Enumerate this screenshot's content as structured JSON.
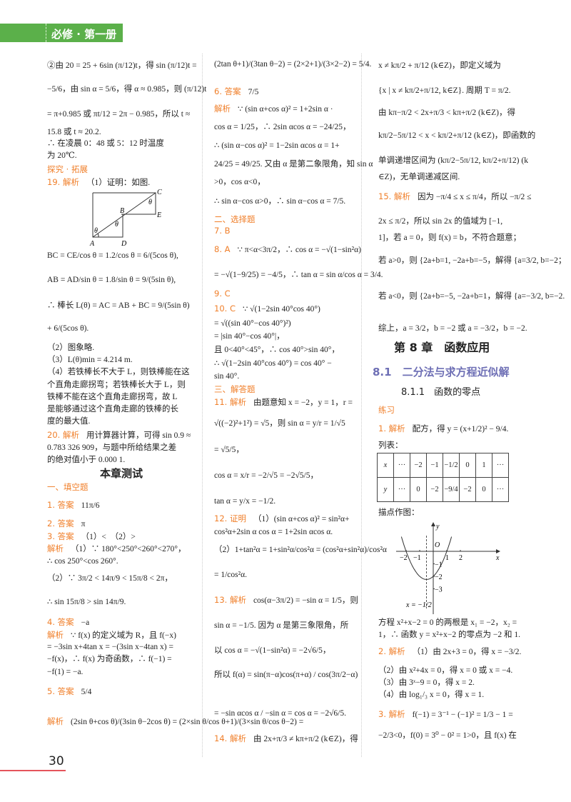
{
  "header": {
    "book": "必修 · 第一册"
  },
  "page_number": "30",
  "col1": [
    {
      "text": "②由 20 = 25 + 6sin (π/12)t，得 sin (π/12)t ="
    },
    {
      "text": "−5/6，由 sin α = 5/6，得 α ≈ 0.985，则 (π/12)t"
    },
    {
      "text": "= π+0.985 或 πt/12 = 2π − 0.985，所以 t ≈"
    },
    {
      "text": "15.8 或 t ≈ 20.2."
    },
    {
      "text": "∴ 在凌晨 0：48 或 5：12 时温度"
    },
    {
      "text": "为 20℃."
    },
    {
      "orange": "探究 · 拓展"
    },
    {
      "label": "19. 解析",
      "text": "（1）证明：如图."
    },
    {
      "text": "BC = CE/cos θ = 1.2/cos θ = 6/(5cos θ),"
    },
    {
      "text": "AB = AD/sin θ = 1.8/sin θ = 9/(5sin θ),"
    },
    {
      "text": "∴ 棒长 L(θ) = AC = AB + BC = 9/(5sin θ)"
    },
    {
      "text": "+ 6/(5cos θ)."
    },
    {
      "text": "（2）图象略."
    },
    {
      "text": "（3）L(θ)min = 4.214 m."
    },
    {
      "text": "（4）若铁棒长不大于 L，则铁棒能在这"
    },
    {
      "text": "个直角走廊拐弯；若铁棒长大于 L，则"
    },
    {
      "text": "铁棒不能在这个直角走廊拐弯，故 L"
    },
    {
      "text": "是能够通过这个直角走廊的铁棒的长"
    },
    {
      "text": "度的最大值."
    },
    {
      "label": "20. 解析",
      "text": "用计算器计算，可得 sin 0.9 ≈"
    },
    {
      "text": "0.783 326 909，与题中所给结果之差"
    },
    {
      "text": "的绝对值小于 0.000 1."
    },
    {
      "title": "本章测试"
    },
    {
      "orange": "一、填空题"
    },
    {
      "label": "1. 答案",
      "text": "11π/6"
    },
    {
      "label": "2. 答案",
      "text": "π"
    },
    {
      "label": "3. 答案",
      "text": "（1）<　（2）>"
    },
    {
      "label": "解析",
      "text": "（1）∵ 180°<250°<260°<270°，"
    },
    {
      "text": "∴ cos 250°<cos 260°."
    },
    {
      "text": "（2）∵ 3π/2 < 14π/9 < 15π/8 < 2π，"
    },
    {
      "text": "∴ sin 15π/8 > sin 14π/9."
    },
    {
      "label": "4. 答案",
      "text": "−a"
    },
    {
      "label": "解析",
      "text": "∵ f(x) 的定义域为 R，且 f(−x)"
    },
    {
      "text": "= −3sin x+4tan x = −(3sin x−4tan x) ="
    },
    {
      "text": "−f(x)，∴ f(x) 为奇函数，∴ f(−1) ="
    },
    {
      "text": "−f(1) = −a."
    },
    {
      "label": "5. 答案",
      "text": "5/4"
    },
    {
      "label": "解析",
      "text": "(2sin θ+cos θ)/(3sin θ−2cos θ) = (2×sin θ/cos θ+1)/(3×sin θ/cos θ−2) ="
    }
  ],
  "col2": [
    {
      "text": "(2tan θ+1)/(3tan θ−2) = (2×2+1)/(3×2−2) = 5/4."
    },
    {
      "label": "6. 答案",
      "text": "7/5"
    },
    {
      "label": "解析",
      "text": "∵ (sin α+cos α)² = 1+2sin α ·"
    },
    {
      "text": "cos α = 1/25，∴ 2sin αcos α = −24/25，"
    },
    {
      "text": "∴ (sin α−cos α)² = 1−2sin αcos α = 1+"
    },
    {
      "text": "24/25 = 49/25. 又由 α 是第二象限角，知 sin α"
    },
    {
      "text": ">0，cos α<0，"
    },
    {
      "text": "∴ sin α−cos α>0，∴ sin α−cos α = 7/5."
    },
    {
      "orange": "二、选择题"
    },
    {
      "label": "7. B",
      "text": ""
    },
    {
      "label": "8. A",
      "text": "∵ π<α<3π/2，∴ cos α = −√(1−sin²α)"
    },
    {
      "text": "= −√(1−9/25) = −4/5，∴ tan α = sin α/cos α = 3/4."
    },
    {
      "label": "9. C",
      "text": ""
    },
    {
      "label": "10. C",
      "text": "∵ √(1−2sin 40°cos 40°)"
    },
    {
      "text": "= √((sin 40°−cos 40°)²)"
    },
    {
      "text": "= |sin 40°−cos 40°|，"
    },
    {
      "text": "且 0<40°<45°，∴ cos 40°>sin 40°，"
    },
    {
      "text": "∴ √(1−2sin 40°cos 40°) = cos 40° −"
    },
    {
      "text": "sin 40°."
    },
    {
      "orange": "三、解答题"
    },
    {
      "label": "11. 解析",
      "text": "由题意知 x = −2，y = 1，r ="
    },
    {
      "text": "√((−2)²+1²) = √5，则 sin α = y/r = 1/√5"
    },
    {
      "text": "= √5/5，"
    },
    {
      "text": "cos α = x/r = −2/√5 = −2√5/5，"
    },
    {
      "text": "tan α = y/x = −1/2."
    },
    {
      "label": "12. 证明",
      "text": "（1）(sin α+cos α)² = sin²α+"
    },
    {
      "text": "cos²α+2sin α cos α = 1+2sin αcos α."
    },
    {
      "text": "（2）1+tan²α = 1+sin²α/cos²α = (cos²α+sin²α)/cos²α"
    },
    {
      "text": "= 1/cos²α."
    },
    {
      "label": "13. 解析",
      "text": "cos(α−3π/2) = −sin α = 1/5，则"
    },
    {
      "text": "sin α = −1/5. 因为 α 是第三象限角，所"
    },
    {
      "text": "以 cos α = −√(1−sin²α) = −2√6/5，"
    },
    {
      "text": "所以 f(α) = sin(π−α)cos(π+α) / cos(3π/2−α)"
    },
    {
      "text": "= −sin αcos α / −sin α = cos α = −2√6/5."
    },
    {
      "label": "14. 解析",
      "text": "由 2x+π/3 ≠ kπ+π/2 (k∈Z)，得"
    }
  ],
  "col3": [
    {
      "text": "x ≠ kπ/2 + π/12 (k∈Z)，即定义域为"
    },
    {
      "text": "{x | x ≠ kπ/2+π/12, k∈Z}. 周期 T = π/2."
    },
    {
      "text": "由 kπ−π/2 < 2x+π/3 < kπ+π/2 (k∈Z)，得"
    },
    {
      "text": "kπ/2−5π/12 < x < kπ/2+π/12 (k∈Z)，即函数的"
    },
    {
      "text": "单调递增区间为 (kπ/2−5π/12, kπ/2+π/12) (k"
    },
    {
      "text": "∈Z)，无单调递减区间."
    },
    {
      "label": "15. 解析",
      "text": "因为 −π/4 ≤ x ≤ π/4，所以 −π/2 ≤"
    },
    {
      "text": "2x ≤ π/2，所以 sin 2x 的值域为 [−1,"
    },
    {
      "text": "1]，若 a = 0，则 f(x) = b，不符合题意；"
    },
    {
      "text": "若 a>0，则 {2a+b=1, −2a+b=−5，解得 {a=3/2, b=−2；"
    },
    {
      "text": "若 a<0，则 {2a+b=−5, −2a+b=1，解得 {a=−3/2, b=−2."
    },
    {
      "text": "综上，a = 3/2，b = −2 或 a = −3/2，b = −2."
    },
    {
      "chap": "第 8 章　函数应用"
    },
    {
      "sect": "8.1　二分法与求方程近似解"
    },
    {
      "sub": "8.1.1　函数的零点"
    },
    {
      "orange": "练习"
    },
    {
      "label": "1. 解析",
      "text": "配方，得 y = (x+1/2)² − 9/4."
    },
    {
      "text": "列表："
    },
    {
      "text": "描点作图："
    },
    {
      "text": "方程 x²+x−2 = 0 的两根是 x₁ = −2，x₂ ="
    },
    {
      "text": "1，∴ 函数 y = x²+x−2 的零点为 −2 和 1."
    },
    {
      "label": "2. 解析",
      "text": "（1）由 2x+3 = 0，得 x = −3/2."
    },
    {
      "text": "（2）由 x²+4x = 0，得 x = 0 或 x = −4."
    },
    {
      "text": "（3）由 3ˣ−9 = 0，得 x = 2."
    },
    {
      "text": "（4）由 log₁/₃ x = 0，得 x = 1."
    },
    {
      "label": "3. 解析",
      "text": "f(−1) = 3⁻¹ − (−1)² = 1/3 − 1 ="
    },
    {
      "text": "−2/3<0，f(0) = 3⁰ − 0² = 1>0，且 f(x) 在"
    }
  ],
  "table": {
    "rows": [
      [
        "x",
        "···",
        "−2",
        "−1",
        "−1/2",
        "0",
        "1",
        "···"
      ],
      [
        "y",
        "···",
        "0",
        "−2",
        "−9/4",
        "−2",
        "0",
        "···"
      ]
    ]
  },
  "figure19": {
    "labels": [
      "A",
      "B",
      "C",
      "D",
      "E",
      "θ",
      "θ",
      "θ"
    ]
  },
  "graph": {
    "function": "y = x²+x−2",
    "x_ticks": [
      "−2",
      "−1",
      "1",
      "2"
    ],
    "y_ticks": [
      "−1",
      "−2",
      "−3"
    ],
    "origin": "O",
    "x_axis": "x",
    "y_axis": "y",
    "symmetry_label": "x = −1/2"
  },
  "colors": {
    "header_green": "#5bb04a",
    "label_orange": "#f07f2a",
    "section_purple": "#6e6fb5",
    "page_red": "#e5545b"
  }
}
